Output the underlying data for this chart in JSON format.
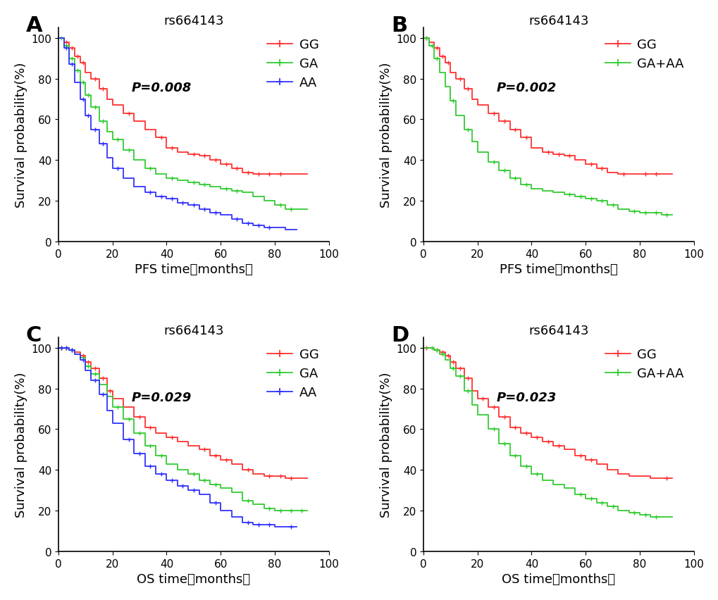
{
  "title": "rs664143",
  "panel_labels": [
    "A",
    "B",
    "C",
    "D"
  ],
  "p_values": [
    "P=0.008",
    "P=0.002",
    "P=0.029",
    "P=0.023"
  ],
  "ylabel": "Survival probability(%)",
  "xlim": [
    0,
    100
  ],
  "ylim": [
    0,
    105
  ],
  "yticks": [
    0,
    20,
    40,
    60,
    80,
    100
  ],
  "xticks": [
    0,
    20,
    40,
    60,
    80,
    100
  ],
  "colors": {
    "GG": "#FF3333",
    "GA": "#33CC33",
    "AA": "#3333FF",
    "GAAA": "#33CC33"
  },
  "background_color": "#FFFFFF",
  "legend_fontsize": 13,
  "label_fontsize": 13,
  "tick_fontsize": 11,
  "title_fontsize": 13,
  "panel_label_fontsize": 22
}
